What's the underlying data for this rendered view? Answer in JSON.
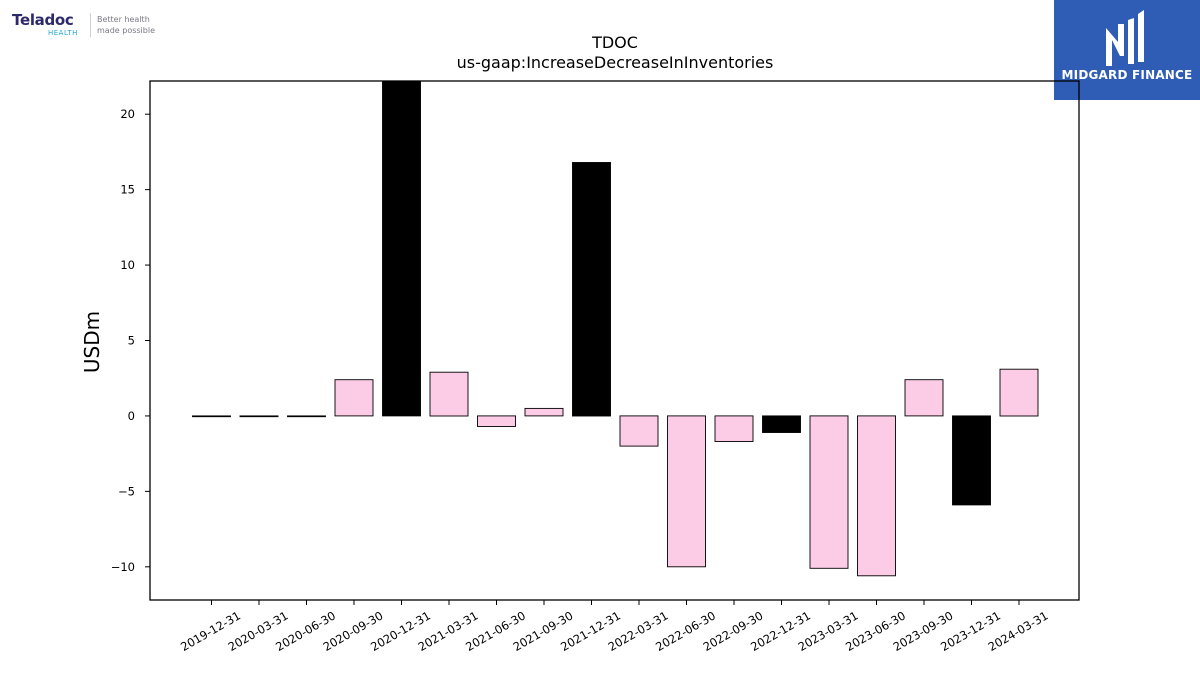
{
  "logos": {
    "left": {
      "name": "Teladoc",
      "sub": "HEALTH",
      "tagline_line1": "Better health",
      "tagline_line2": "made possible",
      "color": "#2c2a6b",
      "accent": "#22a6d6"
    },
    "right": {
      "text": "MIDGARD FINANCE",
      "background": "#2f5cb4"
    }
  },
  "chart_data": {
    "type": "bar",
    "title": "TDOC",
    "subtitle": "us-gaap:IncreaseDecreaseInInventories",
    "xlabel": "",
    "ylabel": "USDm",
    "ylim": [
      -12.2,
      22.2
    ],
    "yticks": [
      -10,
      -5,
      0,
      5,
      10,
      15,
      20
    ],
    "grid": false,
    "categories": [
      "2019-12-31",
      "2020-03-31",
      "2020-06-30",
      "2020-09-30",
      "2020-12-31",
      "2021-03-31",
      "2021-06-30",
      "2021-09-30",
      "2021-12-31",
      "2022-03-31",
      "2022-06-30",
      "2022-09-30",
      "2022-12-31",
      "2023-03-31",
      "2023-06-30",
      "2023-09-30",
      "2023-12-31",
      "2024-03-31"
    ],
    "values": [
      0,
      0,
      0,
      2.4,
      22.2,
      2.9,
      -0.7,
      0.5,
      16.8,
      -2.0,
      -10.0,
      -1.7,
      -1.1,
      -10.1,
      -10.6,
      2.4,
      -5.9,
      3.1
    ],
    "bar_colors": [
      "#fccce6",
      "#fccce6",
      "#fccce6",
      "#fccce6",
      "#000000",
      "#fccce6",
      "#fccce6",
      "#fccce6",
      "#000000",
      "#fccce6",
      "#fccce6",
      "#fccce6",
      "#000000",
      "#fccce6",
      "#fccce6",
      "#fccce6",
      "#000000",
      "#fccce6"
    ]
  }
}
